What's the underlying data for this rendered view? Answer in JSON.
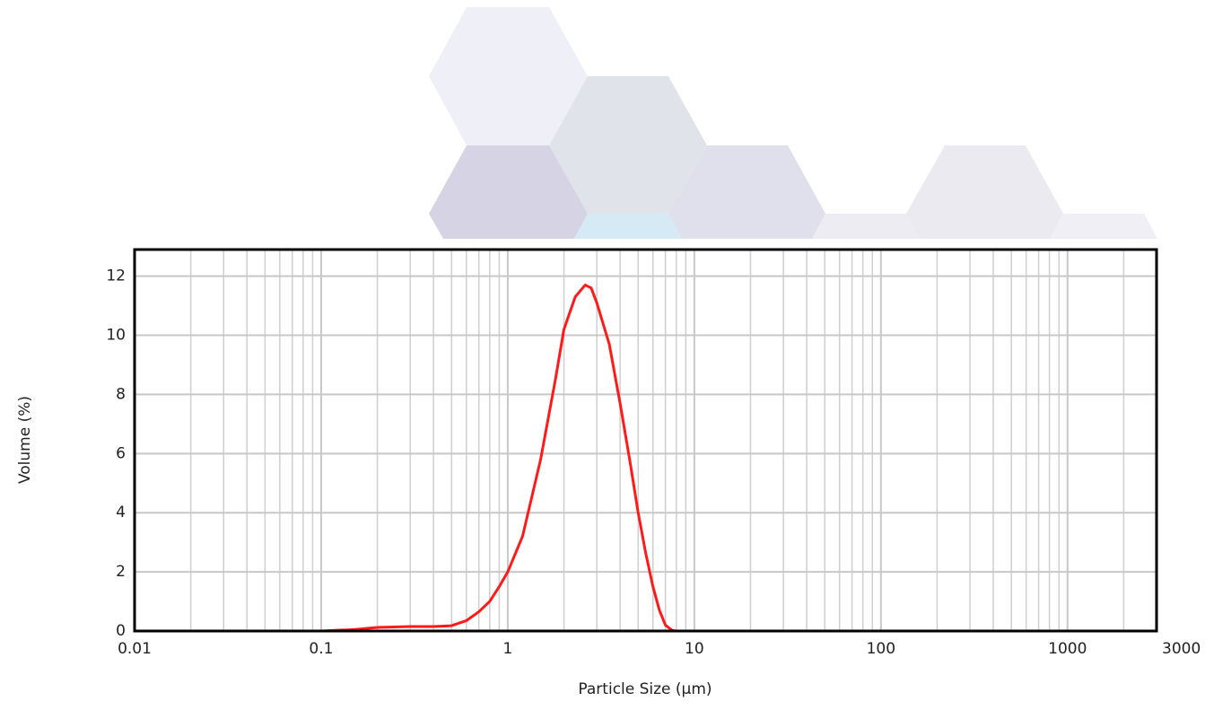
{
  "chart_data": {
    "type": "line",
    "x_label": "Particle Size (µm)",
    "y_label": "Volume (%)",
    "log_x": true,
    "grid": true,
    "xlim": [
      0.01,
      3000
    ],
    "xticks": [
      0.01,
      0.1,
      1,
      10,
      100,
      1000,
      3000
    ],
    "ylim": [
      0,
      12.9
    ],
    "yticks": [
      0,
      2,
      4,
      6,
      8,
      10,
      12
    ],
    "x": [
      0.02,
      0.1,
      0.15,
      0.2,
      0.3,
      0.4,
      0.5,
      0.6,
      0.7,
      0.8,
      0.9,
      1,
      1.2,
      1.5,
      1.8,
      2,
      2.3,
      2.6,
      2.8,
      3,
      3.5,
      4,
      4.5,
      5,
      5.5,
      6,
      6.5,
      7,
      7.6,
      8,
      10,
      100,
      2000
    ],
    "series": [
      {
        "color": "#ff1a1a",
        "values": [
          0,
          0,
          0.05,
          0.12,
          0.15,
          0.15,
          0.18,
          0.35,
          0.65,
          1.0,
          1.5,
          2.0,
          3.2,
          5.8,
          8.5,
          10.2,
          11.3,
          11.7,
          11.6,
          11.1,
          9.7,
          7.7,
          5.8,
          4.0,
          2.6,
          1.5,
          0.7,
          0.2,
          0.02,
          0,
          0,
          0,
          0
        ]
      }
    ]
  }
}
